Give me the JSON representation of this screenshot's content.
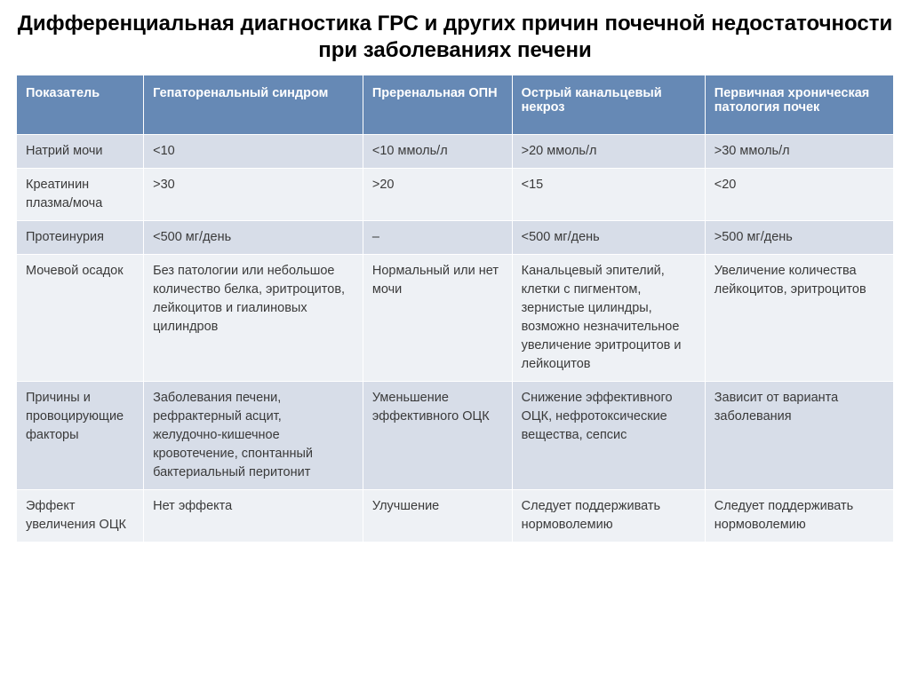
{
  "title": "Дифференциальная диагностика ГРС и других причин почечной недостаточности при заболеваниях печени",
  "columns": [
    "Показатель",
    "Гепаторенальный синдром",
    "Преренальная ОПН",
    "Острый канальцевый некроз",
    "Первичная хроническая патология почек"
  ],
  "rows": [
    {
      "label": "Натрий мочи",
      "c1": "<10",
      "c2": "<10 ммоль/л",
      "c3": ">20 ммоль/л",
      "c4": ">30 ммоль/л"
    },
    {
      "label": "Креатинин плазма/моча",
      "c1": ">30",
      "c2": ">20",
      "c3": "<15",
      "c4": "<20"
    },
    {
      "label": "Протеинурия",
      "c1": "<500 мг/день",
      "c2": "–",
      "c3": "<500 мг/день",
      "c4": ">500 мг/день"
    },
    {
      "label": "Мочевой осадок",
      "c1": "Без патологии или небольшое количество белка, эритроцитов, лейкоцитов и гиалиновых цилиндров",
      "c2": "Нормальный или нет мочи",
      "c3": "Канальцевый эпителий, клетки с пигментом, зернистые цилиндры, возможно незначительное увеличение эритроцитов и лейкоцитов",
      "c4": "Увеличение количества лейкоцитов, эритроцитов"
    },
    {
      "label": "Причины и провоцирующие факторы",
      "c1": "Заболевания печени, рефрактерный асцит, желудочно-кишечное кровотечение, спонтанный бактериальный перитонит",
      "c2": "Уменьшение эффективного ОЦК",
      "c3": "Снижение эффективного ОЦК, нефротоксические вещества, сепсис",
      "c4": "Зависит от варианта заболевания"
    },
    {
      "label": "Эффект увеличения ОЦК",
      "c1": "Нет эффекта",
      "c2": "Улучшение",
      "c3": "Следует поддерживать нормоволемию",
      "c4": "Следует поддерживать нормоволемию"
    }
  ],
  "styling": {
    "header_bg": "#6689b5",
    "header_fg": "#ffffff",
    "row_alt_bg": "#d7dde8",
    "row_plain_bg": "#eef1f5",
    "text_color": "#3a3a3a",
    "title_color": "#000000",
    "title_fontsize": 24,
    "body_fontsize": 14.5,
    "col_widths_pct": [
      14.5,
      25,
      17,
      22,
      21.5
    ]
  }
}
